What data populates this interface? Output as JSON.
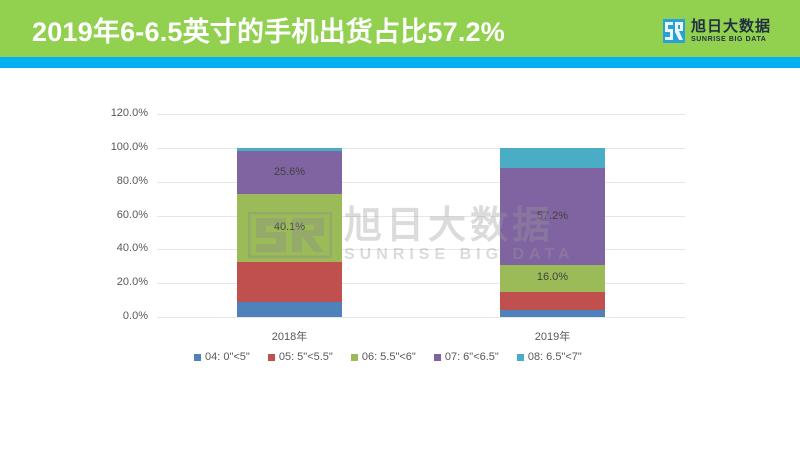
{
  "header": {
    "title": "2019年6-6.5英寸的手机出货占比57.2%",
    "bg_color": "#92d050",
    "stripe_color": "#00b0f0"
  },
  "logo": {
    "mark": "SR",
    "cn": "旭日大数据",
    "en": "SUNRISE BIG DATA",
    "mark_color": "#2aa0d8"
  },
  "watermark": {
    "cn": "旭日大数据",
    "en": "SUNRISE BIG DATA"
  },
  "chart_data": {
    "type": "bar",
    "stacked": true,
    "percent_stacked": true,
    "title": "",
    "xlabel": "",
    "ylabel": "",
    "ylim": [
      0,
      120
    ],
    "yticks": [
      "0.0%",
      "20.0%",
      "40.0%",
      "60.0%",
      "80.0%",
      "100.0%",
      "120.0%"
    ],
    "grid": true,
    "legend_position": "bottom",
    "categories": [
      "2018年",
      "2019年"
    ],
    "series": [
      {
        "name": "04: 0\"<5\"",
        "color": "#4f81bd",
        "values": [
          9.0,
          4.2
        ]
      },
      {
        "name": "05: 5\"<5.5\"",
        "color": "#c0504d",
        "values": [
          23.5,
          10.6
        ]
      },
      {
        "name": "06: 5.5\"<6\"",
        "color": "#9bbb59",
        "values": [
          40.1,
          16.0
        ]
      },
      {
        "name": "07: 6\"<6.5\"",
        "color": "#8064a2",
        "values": [
          25.6,
          57.2
        ]
      },
      {
        "name": "08: 6.5\"<7\"",
        "color": "#4bacc6",
        "values": [
          1.8,
          12.0
        ]
      }
    ],
    "data_labels": [
      {
        "category": "2018年",
        "series": "06: 5.5\"<6\"",
        "text": "40.1%"
      },
      {
        "category": "2018年",
        "series": "07: 6\"<6.5\"",
        "text": "25.6%"
      },
      {
        "category": "2019年",
        "series": "06: 5.5\"<6\"",
        "text": "16.0%"
      },
      {
        "category": "2019年",
        "series": "07: 6\"<6.5\"",
        "text": "57.2%"
      }
    ]
  }
}
